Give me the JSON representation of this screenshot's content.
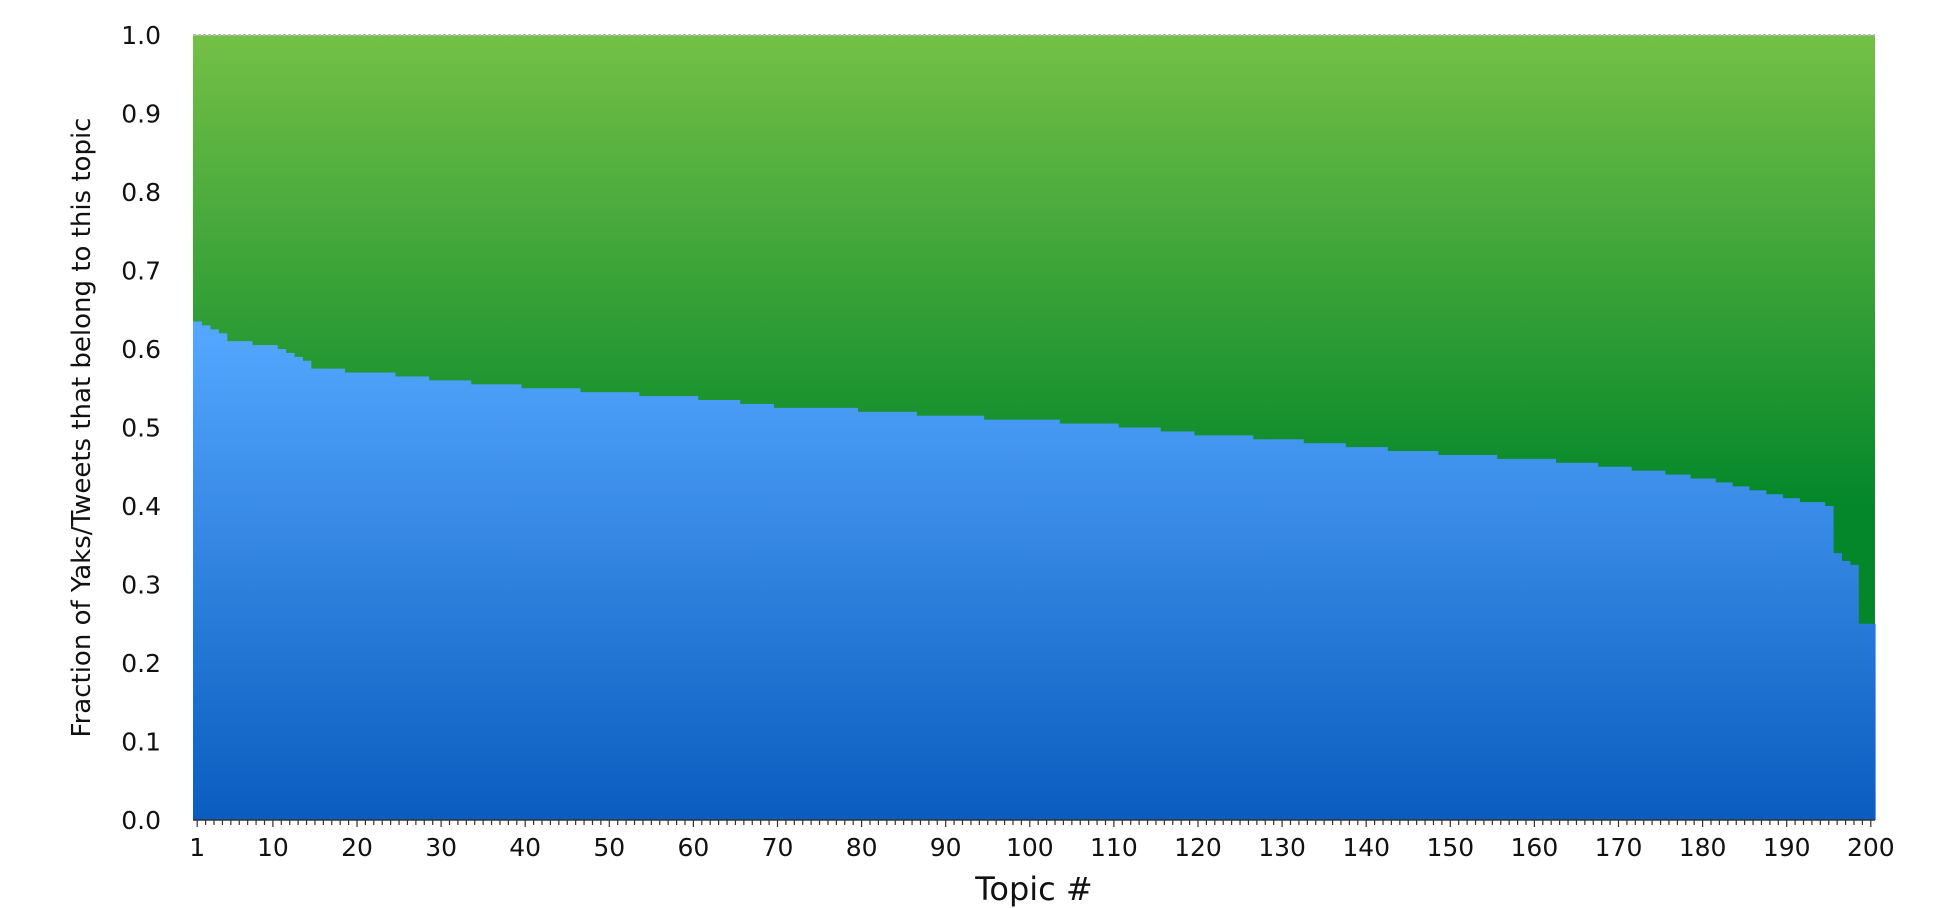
{
  "chart_data": {
    "type": "area",
    "title": "",
    "xlabel": "Topic #",
    "ylabel": "Fraction of Yaks/Tweets that belong to this topic",
    "xlim": [
      1,
      200
    ],
    "ylim": [
      0,
      1
    ],
    "x_ticks": [
      1,
      10,
      20,
      30,
      40,
      50,
      60,
      70,
      80,
      90,
      100,
      110,
      120,
      130,
      140,
      150,
      160,
      170,
      180,
      190,
      200
    ],
    "y_ticks": [
      0.0,
      0.1,
      0.2,
      0.3,
      0.4,
      0.5,
      0.6,
      0.7,
      0.8,
      0.9,
      1.0
    ],
    "y_tick_labels": [
      "0.0",
      "0.1",
      "0.2",
      "0.3",
      "0.4",
      "0.5",
      "0.6",
      "0.7",
      "0.8",
      "0.9",
      "1.0"
    ],
    "grid": false,
    "legend": "none",
    "x_anchor": [
      1,
      5,
      10,
      13,
      15,
      22,
      30,
      40,
      50,
      60,
      70,
      80,
      90,
      100,
      110,
      120,
      130,
      140,
      150,
      160,
      170,
      180,
      185,
      190,
      193,
      195,
      196,
      197,
      198,
      199,
      200
    ],
    "y_anchor": [
      0.635,
      0.612,
      0.603,
      0.59,
      0.575,
      0.57,
      0.56,
      0.552,
      0.545,
      0.538,
      0.527,
      0.522,
      0.515,
      0.51,
      0.503,
      0.492,
      0.485,
      0.475,
      0.466,
      0.46,
      0.45,
      0.436,
      0.425,
      0.412,
      0.405,
      0.4,
      0.341,
      0.33,
      0.325,
      0.25,
      0.25
    ],
    "series": [
      {
        "name": "",
        "color_top": "#56a9ff",
        "color_bottom": "#0a5cbf"
      },
      {
        "name": "",
        "color_top": "#74c046",
        "color_bottom": "#03872a"
      }
    ]
  }
}
